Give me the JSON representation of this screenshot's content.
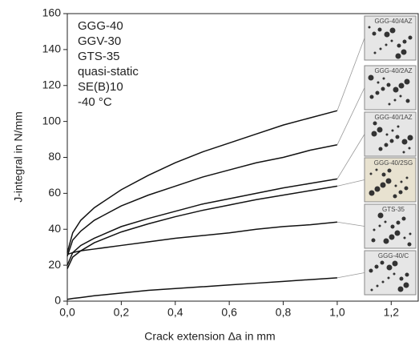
{
  "chart_data": {
    "type": "line",
    "annotation": [
      "GGG-40",
      "GGV-30",
      "GTS-35",
      "quasi-static",
      "SE(B)10",
      "-40 °C"
    ],
    "xlabel": "Crack extension Δa in mm",
    "ylabel": "J-integral in N/mm",
    "x": [
      0,
      0.02,
      0.05,
      0.1,
      0.2,
      0.3,
      0.4,
      0.5,
      0.6,
      0.7,
      0.8,
      0.9,
      1.0
    ],
    "series": [
      {
        "name": "GGG-40/4AZ",
        "color": "#111111",
        "values": [
          27,
          38,
          45,
          52,
          62,
          70,
          77,
          83,
          88,
          93,
          98,
          102,
          106
        ]
      },
      {
        "name": "GGG-40/2AZ",
        "color": "#111111",
        "values": [
          25,
          34,
          39,
          45,
          53,
          59,
          64,
          69,
          73,
          77,
          80,
          84,
          87
        ]
      },
      {
        "name": "GGG-40/1AZ",
        "color": "#111111",
        "values": [
          20,
          27,
          31,
          35,
          41.5,
          46,
          50,
          54,
          57,
          60,
          63,
          65.5,
          68
        ]
      },
      {
        "name": "GGG-40/2SG",
        "color": "#111111",
        "values": [
          18,
          24.5,
          28,
          32.5,
          38.5,
          43,
          47,
          50.5,
          53.5,
          56.5,
          59,
          61.5,
          64
        ]
      },
      {
        "name": "GTS-35",
        "color": "#111111",
        "values": [
          26,
          27,
          28,
          29,
          31,
          33,
          35,
          36.5,
          38,
          40,
          41.5,
          42.5,
          44
        ]
      },
      {
        "name": "GGG-40/C",
        "color": "#111111",
        "values": [
          1,
          1.5,
          2,
          3,
          4.5,
          6,
          7,
          8,
          9,
          10,
          11,
          12,
          13
        ]
      }
    ],
    "xlim": [
      0,
      1.3
    ],
    "ylim": [
      0,
      160
    ],
    "xticks": [
      {
        "value": 0,
        "label": "0,0"
      },
      {
        "value": 0.2,
        "label": "0,2"
      },
      {
        "value": 0.4,
        "label": "0,4"
      },
      {
        "value": 0.6,
        "label": "0,6"
      },
      {
        "value": 0.8,
        "label": "0,8"
      },
      {
        "value": 1.0,
        "label": "1,0"
      },
      {
        "value": 1.2,
        "label": "1,2"
      }
    ],
    "yticks": [
      0,
      20,
      40,
      60,
      80,
      100,
      120,
      140,
      160
    ]
  }
}
